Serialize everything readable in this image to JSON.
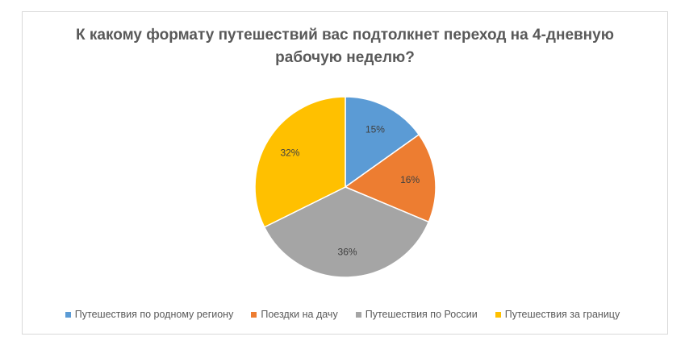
{
  "chart_data": {
    "type": "pie",
    "title": "К какому формату путешествий вас подтолкнет переход на 4-дневную рабочую неделю?",
    "categories": [
      "Путешествия по родному региону",
      "Поездки на дачу",
      "Путешествия по России",
      "Путешествия за границу"
    ],
    "values": [
      15,
      16,
      36,
      32
    ],
    "labels": [
      "15%",
      "16%",
      "36%",
      "32%"
    ],
    "colors": [
      "#5b9bd5",
      "#ed7d31",
      "#a5a5a5",
      "#ffc000"
    ],
    "legend_position": "bottom"
  }
}
